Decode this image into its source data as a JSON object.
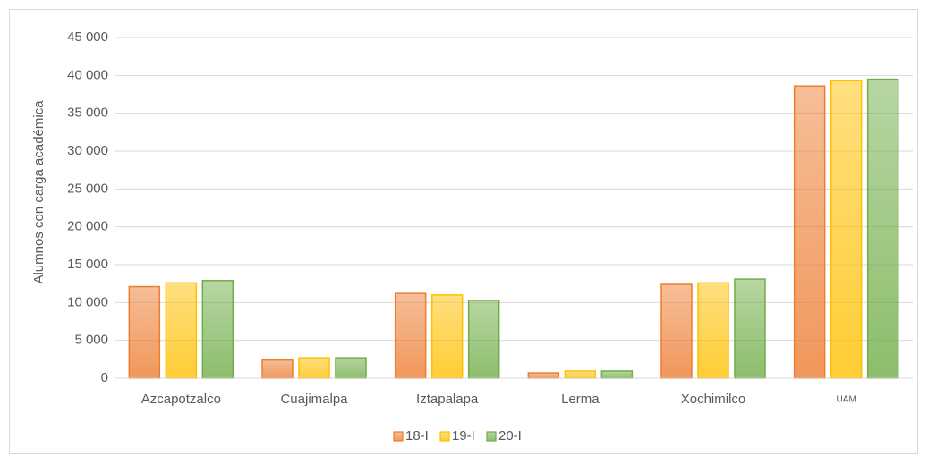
{
  "chart_data": {
    "type": "bar",
    "ylabel": "Alumnos con carga académica",
    "categories": [
      "Azcapotzalco",
      "Cuajimalpa",
      "Iztapalapa",
      "Lerma",
      "Xochimilco",
      "UAM"
    ],
    "series": [
      {
        "name": "18-I",
        "color": "#ed7d31",
        "values": [
          12100,
          2400,
          11200,
          700,
          12400,
          38600
        ]
      },
      {
        "name": "19-I",
        "color": "#ffc000",
        "values": [
          12600,
          2700,
          11000,
          950,
          12600,
          39300
        ]
      },
      {
        "name": "20-I",
        "color": "#70ad47",
        "values": [
          12900,
          2700,
          10300,
          950,
          13100,
          39500
        ]
      }
    ],
    "ylim": [
      0,
      45000
    ],
    "yticks": [
      0,
      {
        "value": 5000,
        "label": "5 000"
      },
      {
        "value": 10000,
        "label": "10 000"
      },
      {
        "value": 15000,
        "label": "15 000"
      },
      {
        "value": 20000,
        "label": "20 000"
      },
      {
        "value": 25000,
        "label": "25 000"
      },
      {
        "value": 30000,
        "label": "30 000"
      },
      {
        "value": 35000,
        "label": "35 000"
      },
      {
        "value": 40000,
        "label": "40 000"
      },
      {
        "value": 45000,
        "label": "45 000"
      }
    ],
    "grid": true,
    "legend": "bottom"
  }
}
